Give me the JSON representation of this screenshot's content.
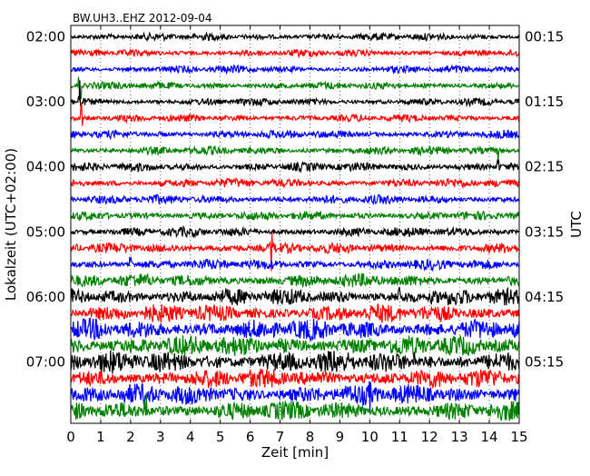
{
  "chart_data": {
    "type": "line",
    "title": "BW.UH3..EHZ 2012-09-04",
    "xlabel": "Zeit  [min]",
    "ylabel_left": "Lokalzeit (UTC+02:00)",
    "ylabel_right": "UTC",
    "xlim": [
      0,
      15
    ],
    "x_ticks": [
      "0",
      "1",
      "2",
      "3",
      "4",
      "5",
      "6",
      "7",
      "8",
      "9",
      "10",
      "11",
      "12",
      "13",
      "14",
      "15"
    ],
    "grid": "vertical-dotted",
    "trace_count": 24,
    "trace_colors": [
      "#000000",
      "#ff0000",
      "#0000ff",
      "#008000"
    ],
    "left_ticks": [
      {
        "label": "02:00",
        "trace": 0
      },
      {
        "label": "03:00",
        "trace": 4
      },
      {
        "label": "04:00",
        "trace": 8
      },
      {
        "label": "05:00",
        "trace": 12
      },
      {
        "label": "06:00",
        "trace": 16
      },
      {
        "label": "07:00",
        "trace": 20
      }
    ],
    "right_ticks": [
      {
        "label": "00:15",
        "trace": 0
      },
      {
        "label": "01:15",
        "trace": 4
      },
      {
        "label": "02:15",
        "trace": 8
      },
      {
        "label": "03:15",
        "trace": 12
      },
      {
        "label": "04:15",
        "trace": 16
      },
      {
        "label": "05:15",
        "trace": 20
      }
    ],
    "trace_noise_level": [
      0.25,
      0.25,
      0.25,
      0.25,
      0.25,
      0.25,
      0.28,
      0.28,
      0.3,
      0.3,
      0.3,
      0.3,
      0.32,
      0.35,
      0.35,
      0.45,
      0.55,
      0.6,
      0.7,
      0.7,
      0.75,
      0.65,
      0.7,
      0.65
    ],
    "events": [
      {
        "trace": 3,
        "minute": 0.3,
        "amplitude": 3.2
      },
      {
        "trace": 4,
        "minute": 0.3,
        "amplitude": 2.0
      },
      {
        "trace": 5,
        "minute": 0.35,
        "amplitude": 1.4
      },
      {
        "trace": 7,
        "minute": 14.3,
        "amplitude": 1.4
      },
      {
        "trace": 8,
        "minute": 14.3,
        "amplitude": 1.2
      },
      {
        "trace": 13,
        "minute": 6.7,
        "amplitude": 2.6
      },
      {
        "trace": 14,
        "minute": 2.0,
        "amplitude": 1.8
      },
      {
        "trace": 16,
        "minute": 11.0,
        "amplitude": 1.0
      },
      {
        "trace": 16,
        "minute": 12.1,
        "amplitude": 1.2
      },
      {
        "trace": 20,
        "minute": 11.5,
        "amplitude": 1.1
      },
      {
        "trace": 22,
        "minute": 10.0,
        "amplitude": 1.6
      },
      {
        "trace": 23,
        "minute": 2.5,
        "amplitude": 2.4
      }
    ]
  }
}
